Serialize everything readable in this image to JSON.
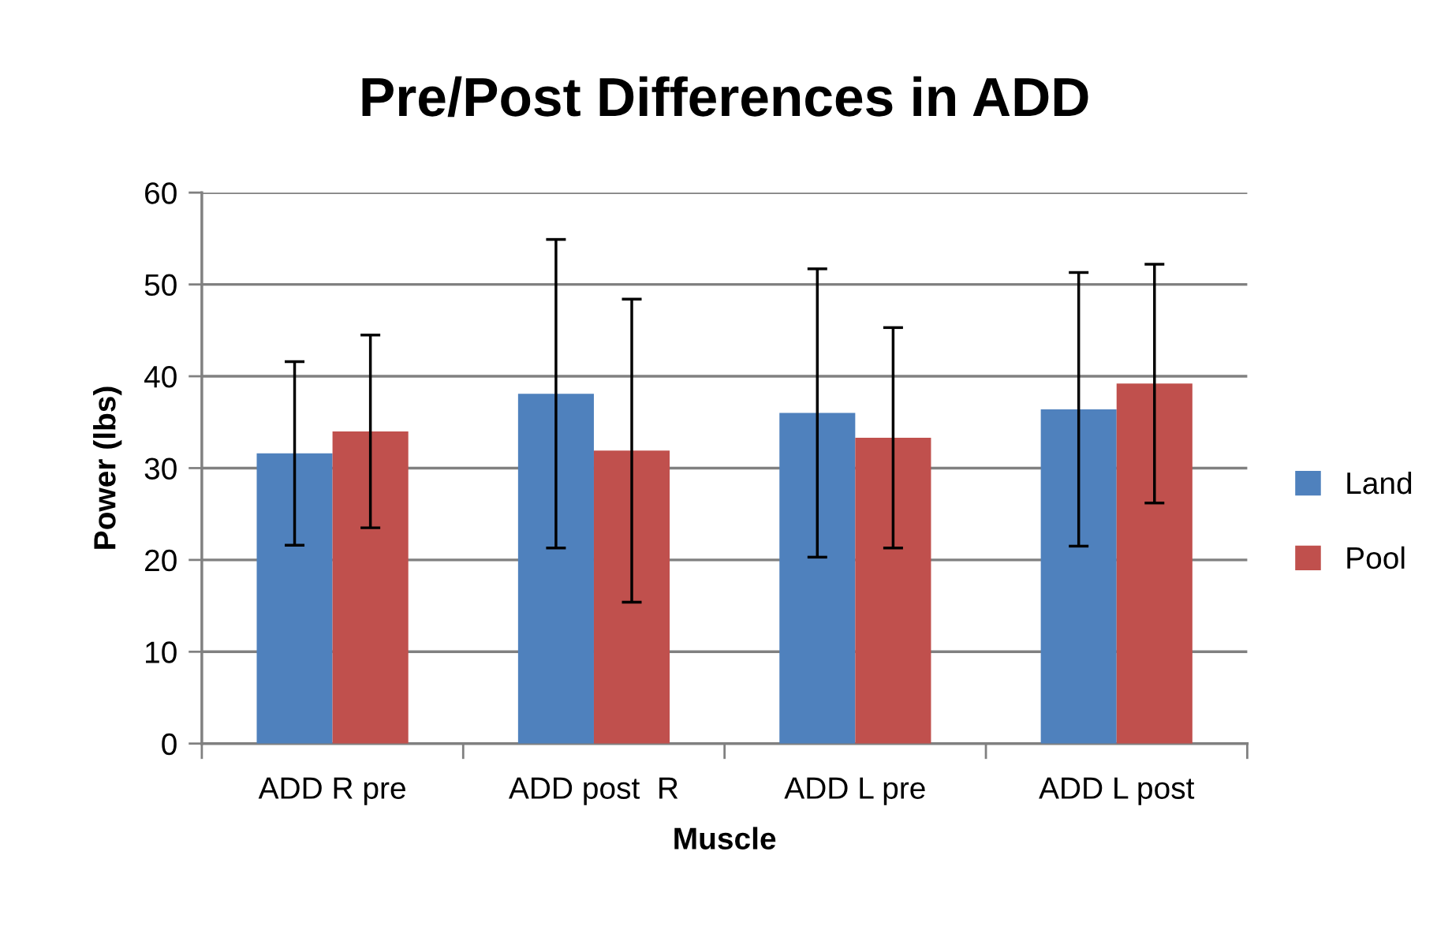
{
  "chart_data": {
    "type": "bar",
    "title": "Pre/Post Differences in ADD",
    "xlabel": "Muscle",
    "ylabel": "Power (lbs)",
    "categories": [
      "ADD R pre",
      "ADD post  R",
      "ADD L pre",
      "ADD L post"
    ],
    "series": [
      {
        "name": "Land",
        "color": "#4f81bd",
        "values": [
          31.6,
          38.1,
          36.0,
          36.4
        ],
        "errors": [
          10.0,
          16.8,
          15.7,
          14.9
        ]
      },
      {
        "name": "Pool",
        "color": "#c0504d",
        "values": [
          34.0,
          31.9,
          33.3,
          39.2
        ],
        "errors": [
          10.5,
          16.5,
          12.0,
          13.0
        ]
      }
    ],
    "ylim": [
      0,
      60
    ],
    "yticks": [
      0,
      10,
      20,
      30,
      40,
      50,
      60
    ],
    "grid": "y",
    "legend": "right"
  }
}
